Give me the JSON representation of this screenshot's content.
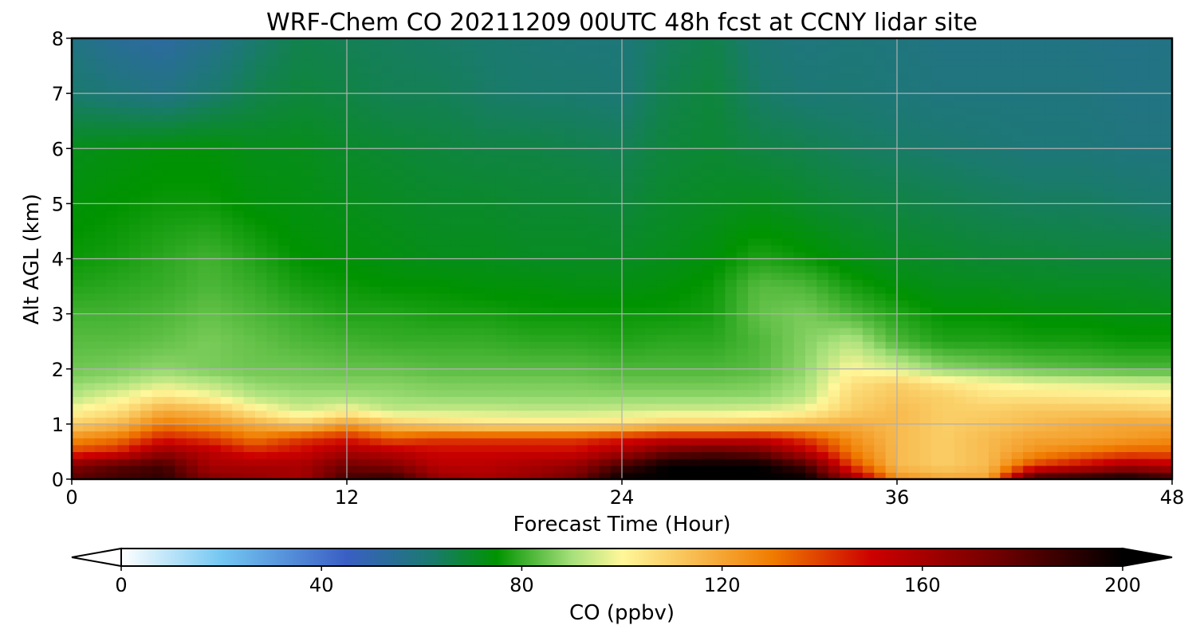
{
  "chart_data": {
    "type": "heatmap",
    "title": "WRF-Chem CO  20211209 00UTC 48h fcst at CCNY lidar site",
    "xlabel": "Forecast Time (Hour)",
    "ylabel": "Alt AGL (km)",
    "xlim": [
      0,
      48
    ],
    "ylim": [
      0,
      8
    ],
    "xticks": [
      0,
      12,
      24,
      36,
      48
    ],
    "yticks": [
      0,
      1,
      2,
      3,
      4,
      5,
      6,
      7,
      8
    ],
    "grid": true,
    "colorbar": {
      "label": "CO  (ppbv)",
      "vmin": 0,
      "vmax": 200,
      "ticks": [
        0,
        40,
        80,
        120,
        160,
        200
      ],
      "extend": "both",
      "placement": "bottom",
      "stops": [
        {
          "value": 0,
          "color": "#ffffff"
        },
        {
          "value": 20,
          "color": "#74c7f2"
        },
        {
          "value": 45,
          "color": "#3a5fc4"
        },
        {
          "value": 62,
          "color": "#1a7a6e"
        },
        {
          "value": 75,
          "color": "#009300"
        },
        {
          "value": 90,
          "color": "#a6e07a"
        },
        {
          "value": 100,
          "color": "#fff79a"
        },
        {
          "value": 130,
          "color": "#f07c00"
        },
        {
          "value": 150,
          "color": "#cc0000"
        },
        {
          "value": 175,
          "color": "#700000"
        },
        {
          "value": 200,
          "color": "#000000"
        }
      ]
    },
    "x": [
      0,
      2,
      4,
      6,
      8,
      10,
      12,
      14,
      16,
      18,
      20,
      22,
      24,
      26,
      28,
      30,
      32,
      34,
      36,
      38,
      40,
      42,
      44,
      46,
      48
    ],
    "y": [
      0,
      0.25,
      0.5,
      0.75,
      1,
      1.25,
      1.5,
      1.75,
      2,
      2.5,
      3,
      3.5,
      4,
      5,
      6,
      7,
      8
    ],
    "z": [
      [
        180,
        185,
        190,
        170,
        165,
        160,
        185,
        190,
        165,
        160,
        165,
        175,
        200,
        200,
        200,
        200,
        200,
        165,
        125,
        120,
        120,
        190,
        195,
        200,
        190
      ],
      [
        170,
        180,
        185,
        160,
        160,
        160,
        175,
        170,
        155,
        155,
        160,
        165,
        185,
        200,
        200,
        200,
        185,
        140,
        115,
        110,
        115,
        140,
        150,
        160,
        155
      ],
      [
        140,
        145,
        165,
        155,
        145,
        150,
        160,
        155,
        150,
        150,
        150,
        150,
        160,
        175,
        180,
        175,
        155,
        130,
        115,
        110,
        115,
        125,
        130,
        135,
        135
      ],
      [
        125,
        130,
        145,
        140,
        130,
        140,
        145,
        135,
        140,
        140,
        140,
        140,
        145,
        150,
        150,
        150,
        140,
        125,
        115,
        110,
        115,
        120,
        120,
        122,
        125
      ],
      [
        110,
        115,
        130,
        125,
        118,
        110,
        122,
        112,
        108,
        105,
        105,
        105,
        106,
        110,
        110,
        112,
        115,
        118,
        115,
        110,
        112,
        115,
        118,
        120,
        120
      ],
      [
        100,
        105,
        118,
        115,
        103,
        95,
        100,
        93,
        94,
        94,
        93,
        93,
        94,
        95,
        95,
        96,
        100,
        110,
        115,
        110,
        110,
        112,
        112,
        112,
        110
      ],
      [
        92,
        98,
        105,
        100,
        92,
        90,
        90,
        89,
        88,
        88,
        88,
        88,
        88,
        88,
        88,
        88,
        92,
        108,
        112,
        110,
        105,
        105,
        104,
        103,
        102
      ],
      [
        88,
        90,
        95,
        92,
        88,
        87,
        87,
        87,
        86,
        86,
        86,
        86,
        85,
        85,
        85,
        86,
        90,
        105,
        110,
        104,
        100,
        97,
        96,
        95,
        94
      ],
      [
        85,
        86,
        88,
        86,
        85,
        85,
        84,
        84,
        83,
        83,
        83,
        83,
        82,
        82,
        82,
        83,
        88,
        100,
        95,
        88,
        86,
        84,
        83,
        82,
        82
      ],
      [
        83,
        83,
        84,
        86,
        84,
        82,
        81,
        80,
        80,
        80,
        79,
        79,
        78,
        79,
        79,
        82,
        87,
        92,
        82,
        78,
        78,
        77,
        77,
        76,
        76
      ],
      [
        81,
        81,
        82,
        84,
        82,
        80,
        78,
        78,
        77,
        77,
        76,
        76,
        76,
        76,
        77,
        84,
        86,
        82,
        78,
        75,
        75,
        74,
        74,
        73,
        73
      ],
      [
        78,
        79,
        80,
        82,
        80,
        77,
        76,
        75,
        75,
        74,
        74,
        73,
        73,
        74,
        76,
        83,
        82,
        77,
        74,
        72,
        72,
        71,
        71,
        71,
        70
      ],
      [
        76,
        77,
        79,
        81,
        78,
        75,
        74,
        73,
        72,
        72,
        71,
        71,
        71,
        72,
        74,
        78,
        76,
        73,
        71,
        70,
        69,
        69,
        68,
        68,
        68
      ],
      [
        74,
        75,
        76,
        76,
        74,
        73,
        72,
        71,
        70,
        70,
        69,
        69,
        68,
        70,
        71,
        72,
        70,
        68,
        67,
        66,
        65,
        64,
        64,
        63,
        62
      ],
      [
        72,
        73,
        74,
        74,
        72,
        72,
        70,
        69,
        68,
        67,
        67,
        66,
        65,
        68,
        69,
        67,
        66,
        64,
        63,
        62,
        61,
        60,
        60,
        59,
        59
      ],
      [
        62,
        60,
        58,
        62,
        66,
        68,
        67,
        65,
        65,
        63,
        62,
        62,
        61,
        66,
        68,
        63,
        61,
        61,
        60,
        59,
        59,
        59,
        59,
        58,
        58
      ],
      [
        58,
        54,
        52,
        56,
        62,
        66,
        65,
        64,
        63,
        62,
        61,
        60,
        60,
        64,
        66,
        61,
        59,
        60,
        59,
        58,
        58,
        58,
        58,
        57,
        58
      ]
    ]
  }
}
